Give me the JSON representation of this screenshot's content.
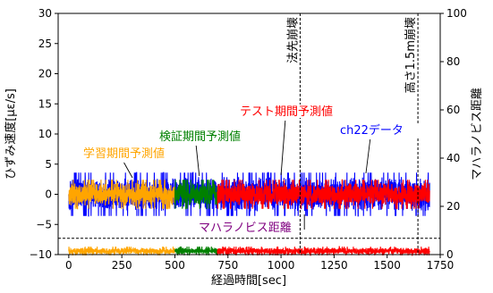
{
  "chart_data": {
    "type": "line",
    "xlabel": "経過時間[sec]",
    "ylabel_left": "ひずみ速度[με/s]",
    "ylabel_right": "マハラノビス距離",
    "xlim": [
      -50,
      1750
    ],
    "ylim_left": [
      -10,
      30
    ],
    "ylim_right": [
      0,
      100
    ],
    "x_ticks": [
      0,
      250,
      500,
      750,
      1000,
      1250,
      1500,
      1750
    ],
    "x_tick_labels": [
      "0",
      "250",
      "500",
      "750",
      "1000",
      "1250",
      "1500",
      "1750"
    ],
    "y_left_ticks": [
      -10,
      -5,
      0,
      5,
      10,
      15,
      20,
      25,
      30
    ],
    "y_left_tick_labels": [
      "−10",
      "−5",
      "0",
      "5",
      "10",
      "15",
      "20",
      "25",
      "30"
    ],
    "y_right_ticks": [
      0,
      20,
      40,
      60,
      80,
      100
    ],
    "y_right_tick_labels": [
      "0",
      "20",
      "40",
      "60",
      "80",
      "100"
    ],
    "grid": false,
    "series": [
      {
        "name": "ch22データ",
        "axis": "left",
        "color": "#0000ff",
        "x_start": 0,
        "x_end": 1700,
        "center": 0,
        "amplitude": 3
      },
      {
        "name": "学習期間予測値",
        "axis": "left",
        "color": "#ffa500",
        "x_start": 0,
        "x_end": 500,
        "center": 0,
        "amplitude": 2
      },
      {
        "name": "検証期間予測値",
        "axis": "left",
        "color": "#008000",
        "x_start": 500,
        "x_end": 700,
        "center": 0,
        "amplitude": 2
      },
      {
        "name": "テスト期間予測値",
        "axis": "left",
        "color": "#ff0000",
        "x_start": 700,
        "x_end": 1700,
        "center": 0,
        "amplitude": 2
      },
      {
        "name": "マハラノビス距離",
        "axis": "right",
        "segments": [
          {
            "x_start": 0,
            "x_end": 500,
            "color": "#ffa500"
          },
          {
            "x_start": 500,
            "x_end": 700,
            "color": "#008000"
          },
          {
            "x_start": 700,
            "x_end": 1700,
            "color": "#ff0000"
          }
        ],
        "approx_range": [
          0,
          3
        ]
      }
    ],
    "threshold": {
      "axis": "left",
      "y": -7.3,
      "style": "dashed",
      "color": "#000000"
    },
    "events": [
      {
        "x": 1090,
        "label": "法先崩壊"
      },
      {
        "x": 1645,
        "label": "高さ1.5m崩壊"
      }
    ],
    "annotations": [
      {
        "text": "学習期間予測値",
        "color": "#ffa500"
      },
      {
        "text": "検証期間予測値",
        "color": "#008000"
      },
      {
        "text": "テスト期間予測値",
        "color": "#ff0000"
      },
      {
        "text": "ch22データ",
        "color": "#0000ff"
      },
      {
        "text": "マハラノビス距離",
        "color": "#800080"
      }
    ]
  }
}
